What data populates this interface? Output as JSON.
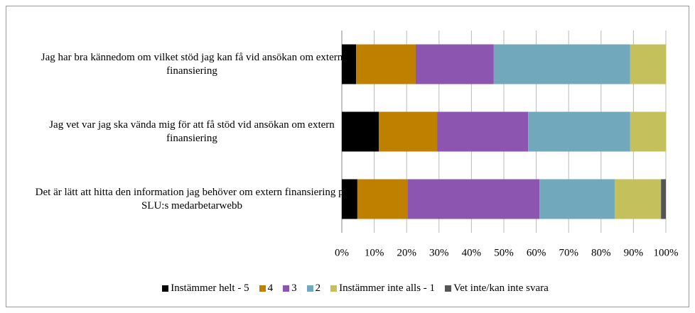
{
  "chart_data": {
    "type": "stacked_barh",
    "categories": [
      "Jag har bra kännedom om vilket stöd jag kan få vid ansökan om extern finansiering",
      "Jag vet var jag ska vända mig för att få stöd vid ansökan om extern finansiering",
      "Det är lätt att hitta den information jag behöver om extern finansiering på SLU:s medarbetarwebb"
    ],
    "series": [
      {
        "name": "Instämmer helt - 5",
        "color": "#000000",
        "values": [
          4.4,
          11.4,
          4.8
        ]
      },
      {
        "name": "4",
        "color": "#bf8000",
        "values": [
          18.4,
          18.0,
          15.6
        ]
      },
      {
        "name": "3",
        "color": "#8c55b0",
        "values": [
          24.1,
          28.1,
          40.6
        ]
      },
      {
        "name": "2",
        "color": "#71a8bb",
        "values": [
          42.1,
          31.5,
          23.2
        ]
      },
      {
        "name": "Instämmer inte alls - 1",
        "color": "#c4c15d",
        "values": [
          11.0,
          11.0,
          14.3
        ]
      },
      {
        "name": "Vet inte/kan inte svara",
        "color": "#555555",
        "values": [
          0,
          0,
          1.5
        ]
      }
    ],
    "xlim": [
      0,
      100
    ],
    "xticks": [
      {
        "value": 0,
        "label": "0%"
      },
      {
        "value": 10,
        "label": "10%"
      },
      {
        "value": 20,
        "label": "20%"
      },
      {
        "value": 30,
        "label": "30%"
      },
      {
        "value": 40,
        "label": "40%"
      },
      {
        "value": 50,
        "label": "50%"
      },
      {
        "value": 60,
        "label": "60%"
      },
      {
        "value": 70,
        "label": "70%"
      },
      {
        "value": 80,
        "label": "80%"
      },
      {
        "value": 90,
        "label": "90%"
      },
      {
        "value": 100,
        "label": "100%"
      }
    ],
    "grid": true,
    "legend": "bottom"
  }
}
